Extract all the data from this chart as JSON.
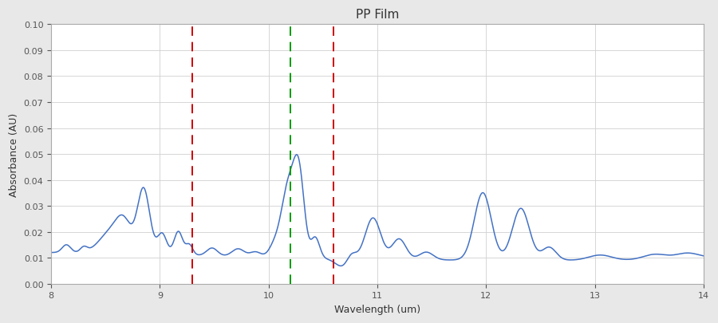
{
  "title": "PP Film",
  "xlabel": "Wavelength (um)",
  "ylabel": "Absorbance (AU)",
  "xlim": [
    8,
    14
  ],
  "ylim": [
    0,
    0.1
  ],
  "yticks": [
    0,
    0.01,
    0.02,
    0.03,
    0.04,
    0.05,
    0.06,
    0.07,
    0.08,
    0.09,
    0.1
  ],
  "xticks": [
    8,
    9,
    10,
    11,
    12,
    13,
    14
  ],
  "vlines": [
    {
      "x": 9.3,
      "color": "#cc0000"
    },
    {
      "x": 10.2,
      "color": "#009900"
    },
    {
      "x": 10.6,
      "color": "#cc0000"
    }
  ],
  "line_color": "#4472C4",
  "line_width": 1.1,
  "background_color": "#ffffff",
  "figure_facecolor": "#e8e8e8",
  "title_fontsize": 11,
  "axis_fontsize": 9,
  "tick_fontsize": 8,
  "grid_color": "#d0d0d0",
  "spine_color": "#aaaaaa"
}
